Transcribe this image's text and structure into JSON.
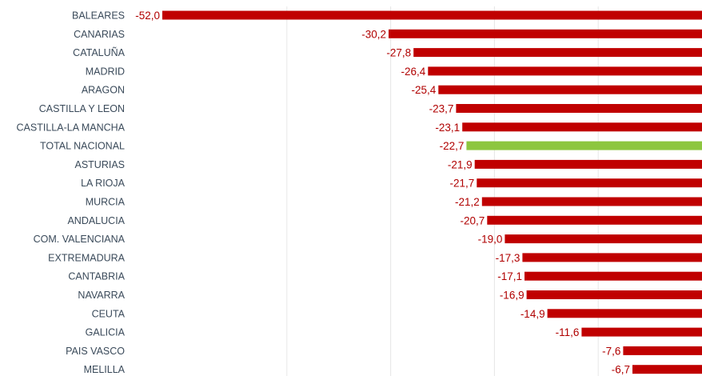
{
  "chart_data": {
    "type": "bar",
    "orientation": "horizontal",
    "categories": [
      "BALEARES",
      "CANARIAS",
      "CATALUÑA",
      "MADRID",
      "ARAGON",
      "CASTILLA Y LEON",
      "CASTILLA-LA MANCHA",
      "TOTAL NACIONAL",
      "ASTURIAS",
      "LA RIOJA",
      "MURCIA",
      "ANDALUCIA",
      "COM. VALENCIANA",
      "EXTREMADURA",
      "CANTABRIA",
      "NAVARRA",
      "CEUTA",
      "GALICIA",
      "PAIS VASCO",
      "MELILLA"
    ],
    "values": [
      -52.0,
      -30.2,
      -27.8,
      -26.4,
      -25.4,
      -23.7,
      -23.1,
      -22.7,
      -21.9,
      -21.7,
      -21.2,
      -20.7,
      -19.0,
      -17.3,
      -17.1,
      -16.9,
      -14.9,
      -11.6,
      -7.6,
      -6.7
    ],
    "value_labels": [
      "-52,0",
      "-30,2",
      "-27,8",
      "-26,4",
      "-25,4",
      "-23,7",
      "-23,1",
      "-22,7",
      "-21,9",
      "-21,7",
      "-21,2",
      "-20,7",
      "-19,0",
      "-17,3",
      "-17,1",
      "-16,9",
      "-14,9",
      "-11,6",
      "-7,6",
      "-6,7"
    ],
    "highlight_category": "TOTAL NACIONAL",
    "colors": {
      "bar": "#c00000",
      "highlight": "#8dc63f",
      "grid": "#e6e6e6"
    },
    "grid": true,
    "title": "",
    "xlabel": "",
    "ylabel": ""
  }
}
